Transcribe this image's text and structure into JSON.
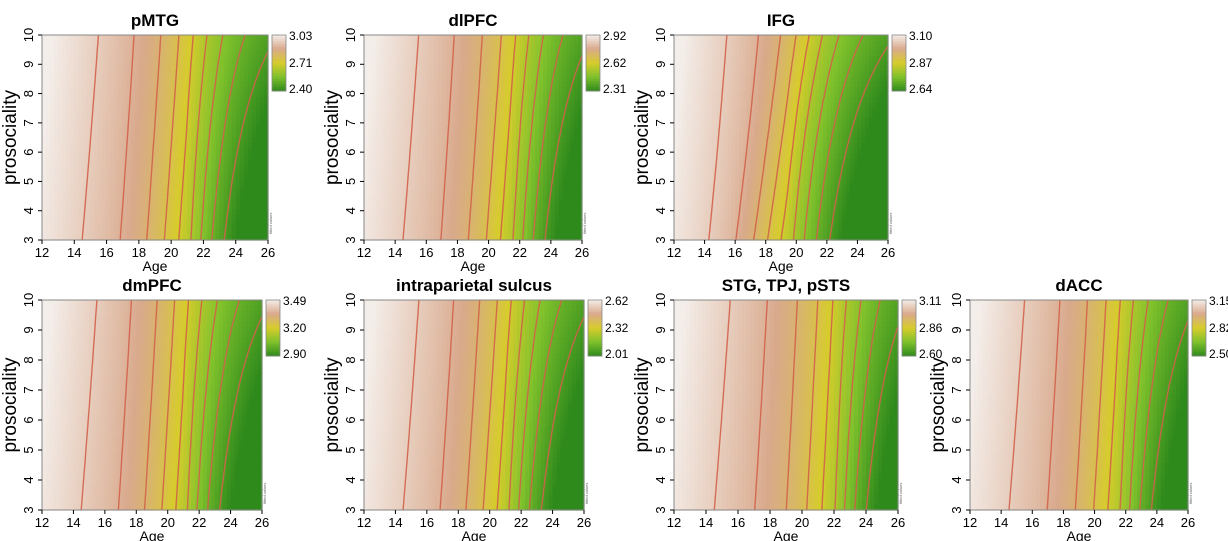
{
  "chart_data": [
    {
      "type": "heatmap",
      "title": "pMTG",
      "xlabel": "Age",
      "ylabel": "prosociality",
      "x_ticks": [
        12,
        14,
        16,
        18,
        20,
        22,
        24,
        26
      ],
      "y_ticks": [
        3,
        4,
        5,
        6,
        7,
        8,
        9,
        10
      ],
      "xlim": [
        12,
        26
      ],
      "ylim": [
        3,
        10
      ],
      "colorbar": {
        "min": 2.4,
        "mid": 2.71,
        "max": 3.03,
        "labels": [
          "3.03",
          "2.71",
          "2.40"
        ]
      },
      "side_note": "fitted values",
      "surface": {
        "age_transition": 21.0,
        "slope": 0.08
      }
    },
    {
      "type": "heatmap",
      "title": "dlPFC",
      "xlabel": "Age",
      "ylabel": "prosociality",
      "x_ticks": [
        12,
        14,
        16,
        18,
        20,
        22,
        24,
        26
      ],
      "y_ticks": [
        3,
        4,
        5,
        6,
        7,
        8,
        9,
        10
      ],
      "xlim": [
        12,
        26
      ],
      "ylim": [
        3,
        10
      ],
      "colorbar": {
        "min": 2.31,
        "mid": 2.62,
        "max": 2.92,
        "labels": [
          "2.92",
          "2.62",
          "2.31"
        ]
      },
      "side_note": "fitted values",
      "surface": {
        "age_transition": 21.5,
        "slope": 0.09
      }
    },
    {
      "type": "heatmap",
      "title": "IFG",
      "xlabel": "Age",
      "ylabel": "prosociality",
      "x_ticks": [
        12,
        14,
        16,
        18,
        20,
        22,
        24,
        26
      ],
      "y_ticks": [
        3,
        4,
        5,
        6,
        7,
        8,
        9,
        10
      ],
      "xlim": [
        12,
        26
      ],
      "ylim": [
        3,
        10
      ],
      "colorbar": {
        "min": 2.64,
        "mid": 2.87,
        "max": 3.1,
        "labels": [
          "3.10",
          "2.87",
          "2.64"
        ]
      },
      "side_note": "fitted values",
      "surface": {
        "age_transition": 19.5,
        "slope": 0.18
      }
    },
    {
      "type": "heatmap",
      "title": "dmPFC",
      "xlabel": "Age",
      "ylabel": "prosociality",
      "x_ticks": [
        12,
        14,
        16,
        18,
        20,
        22,
        24,
        26
      ],
      "y_ticks": [
        3,
        4,
        5,
        6,
        7,
        8,
        9,
        10
      ],
      "xlim": [
        12,
        26
      ],
      "ylim": [
        3,
        10
      ],
      "colorbar": {
        "min": 2.9,
        "mid": 3.2,
        "max": 3.49,
        "labels": [
          "3.49",
          "3.20",
          "2.90"
        ]
      },
      "side_note": "fitted values",
      "surface": {
        "age_transition": 21.0,
        "slope": 0.07
      }
    },
    {
      "type": "heatmap",
      "title": "intraparietal sulcus",
      "xlabel": "Age",
      "ylabel": "prosociality",
      "x_ticks": [
        12,
        14,
        16,
        18,
        20,
        22,
        24,
        26
      ],
      "y_ticks": [
        3,
        4,
        5,
        6,
        7,
        8,
        9,
        10
      ],
      "xlim": [
        12,
        26
      ],
      "ylim": [
        3,
        10
      ],
      "colorbar": {
        "min": 2.01,
        "mid": 2.32,
        "max": 2.62,
        "labels": [
          "2.62",
          "2.32",
          "2.01"
        ]
      },
      "side_note": "fitted values",
      "surface": {
        "age_transition": 21.0,
        "slope": 0.08
      }
    },
    {
      "type": "heatmap",
      "title": "STG, TPJ, pSTS",
      "xlabel": "Age",
      "ylabel": "prosociality",
      "x_ticks": [
        12,
        14,
        16,
        18,
        20,
        22,
        24,
        26
      ],
      "y_ticks": [
        3,
        4,
        5,
        6,
        7,
        8,
        9,
        10
      ],
      "xlim": [
        12,
        26
      ],
      "ylim": [
        3,
        10
      ],
      "colorbar": {
        "min": 2.6,
        "mid": 2.86,
        "max": 3.11,
        "labels": [
          "3.11",
          "2.86",
          "2.60"
        ]
      },
      "side_note": "fitted values",
      "surface": {
        "age_transition": 22.0,
        "slope": 0.06
      }
    },
    {
      "type": "heatmap",
      "title": "dACC",
      "xlabel": "Age",
      "ylabel": "prosociality",
      "x_ticks": [
        12,
        14,
        16,
        18,
        20,
        22,
        24,
        26
      ],
      "y_ticks": [
        3,
        4,
        5,
        6,
        7,
        8,
        9,
        10
      ],
      "xlim": [
        12,
        26
      ],
      "ylim": [
        3,
        10
      ],
      "colorbar": {
        "min": 2.5,
        "mid": 2.82,
        "max": 3.15,
        "labels": [
          "3.15",
          "2.82",
          "2.50"
        ]
      },
      "side_note": "fitted values",
      "surface": {
        "age_transition": 21.5,
        "slope": 0.07
      }
    }
  ],
  "colors": {
    "high": "#f4eeea",
    "upper": "#d9a98c",
    "mid": "#d7cc2c",
    "lower": "#7fc12c",
    "low": "#2f8a1c",
    "contour": "#d2624a"
  }
}
